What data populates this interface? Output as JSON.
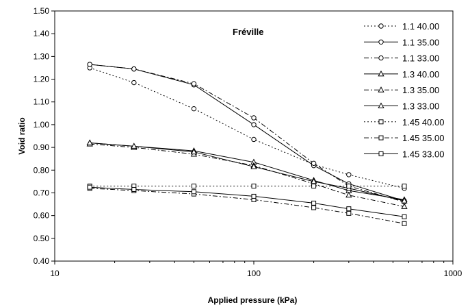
{
  "chart_data": {
    "type": "line",
    "annotation": "Fréville",
    "xlabel": "Applied pressure (kPa)",
    "ylabel": "Void ratio",
    "xscale": "log",
    "xlim": [
      10,
      1000
    ],
    "ylim": [
      0.4,
      1.5
    ],
    "x_ticks": [
      10,
      100,
      1000
    ],
    "x_tick_labels": [
      "10",
      "100",
      "1000"
    ],
    "y_ticks": [
      0.4,
      0.5,
      0.6,
      0.7,
      0.8,
      0.9,
      1.0,
      1.1,
      1.2,
      1.3,
      1.4,
      1.5
    ],
    "y_tick_labels": [
      "0.40",
      "0.50",
      "0.60",
      "0.70",
      "0.80",
      "0.90",
      "1.00",
      "1.10",
      "1.20",
      "1.30",
      "1.40",
      "1.50"
    ],
    "grid": false,
    "legend_position": "right",
    "x": [
      15,
      25,
      50,
      100,
      200,
      300,
      570
    ],
    "series": [
      {
        "name": "1.1 40.00",
        "marker": "circle",
        "dash": "dot",
        "values": [
          1.25,
          1.185,
          1.07,
          0.935,
          0.825,
          0.78,
          0.72
        ]
      },
      {
        "name": "1.1 35.00",
        "marker": "circle",
        "dash": "solid",
        "values": [
          1.265,
          1.245,
          1.175,
          1.0,
          0.82,
          0.74,
          0.665
        ]
      },
      {
        "name": "1.1 33.00",
        "marker": "circle",
        "dash": "dashdot",
        "values": [
          1.265,
          1.245,
          1.18,
          1.03,
          0.83,
          0.73,
          0.66
        ]
      },
      {
        "name": "1.3 40.00",
        "marker": "triangle",
        "dash": "solid",
        "values": [
          0.92,
          0.905,
          0.885,
          0.835,
          0.755,
          0.71,
          0.67
        ]
      },
      {
        "name": "1.3 35.00",
        "marker": "triangle",
        "dash": "dashdot",
        "values": [
          0.915,
          0.9,
          0.87,
          0.82,
          0.74,
          0.69,
          0.64
        ]
      },
      {
        "name": "1.3 33.00",
        "marker": "triangle",
        "dash": "solid",
        "values": [
          0.92,
          0.905,
          0.88,
          0.815,
          0.75,
          0.72,
          0.665
        ]
      },
      {
        "name": "1.45 40.00",
        "marker": "square",
        "dash": "dot",
        "values": [
          0.73,
          0.73,
          0.73,
          0.73,
          0.73,
          0.73,
          0.73
        ]
      },
      {
        "name": "1.45 35.00",
        "marker": "square",
        "dash": "dashdot",
        "values": [
          0.72,
          0.71,
          0.695,
          0.67,
          0.635,
          0.61,
          0.565
        ]
      },
      {
        "name": "1.45 33.00",
        "marker": "square",
        "dash": "solid",
        "values": [
          0.725,
          0.715,
          0.705,
          0.685,
          0.655,
          0.63,
          0.595
        ]
      }
    ]
  }
}
